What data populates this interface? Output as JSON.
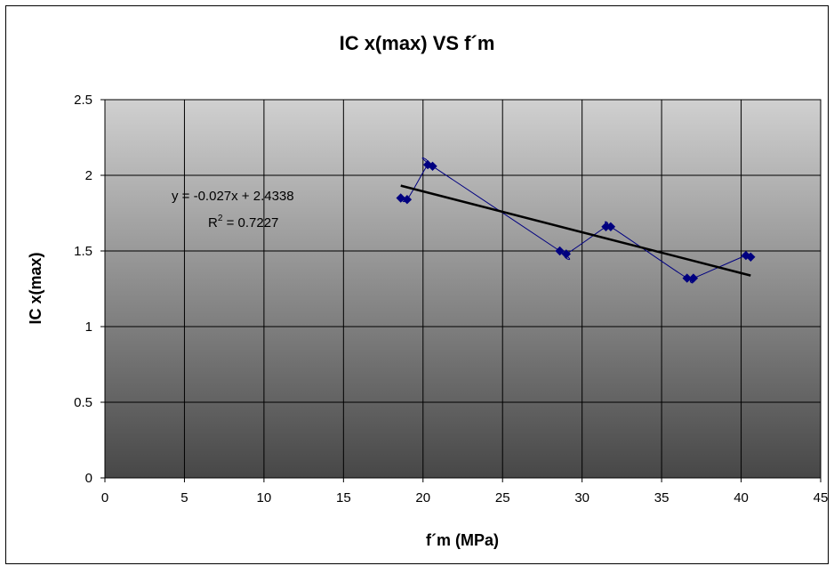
{
  "chart_data": {
    "type": "scatter",
    "title": "IC x(max) VS f´m",
    "xlabel": "f´m (MPa)",
    "ylabel": "IC x(max)",
    "xlim": [
      0,
      45
    ],
    "ylim": [
      0,
      2.5
    ],
    "x_ticks": [
      "0",
      "5",
      "10",
      "15",
      "20",
      "25",
      "30",
      "35",
      "40",
      "45"
    ],
    "y_ticks": [
      "0",
      "0.5",
      "1",
      "1.5",
      "2",
      "2.5"
    ],
    "grid": true,
    "legend": "none",
    "series": [
      {
        "x": [
          18.6,
          19.0,
          20.3,
          20.6,
          28.6,
          29.0,
          31.5,
          31.8,
          36.6,
          37.0,
          40.3,
          40.6
        ],
        "y": [
          1.85,
          1.84,
          2.07,
          2.06,
          1.5,
          1.48,
          1.66,
          1.66,
          1.32,
          1.32,
          1.47,
          1.46
        ],
        "color": "#000080",
        "marker": "diamond",
        "line": "smooth"
      }
    ],
    "trendline": {
      "slope": -0.027,
      "intercept": 2.4338,
      "x_range": [
        18.6,
        40.6
      ],
      "color": "#000000",
      "equation": "y = -0.027x + 2.4338",
      "r2_prefix": "R",
      "r2_sup": "2",
      "r2_value": " = 0.7227"
    }
  }
}
